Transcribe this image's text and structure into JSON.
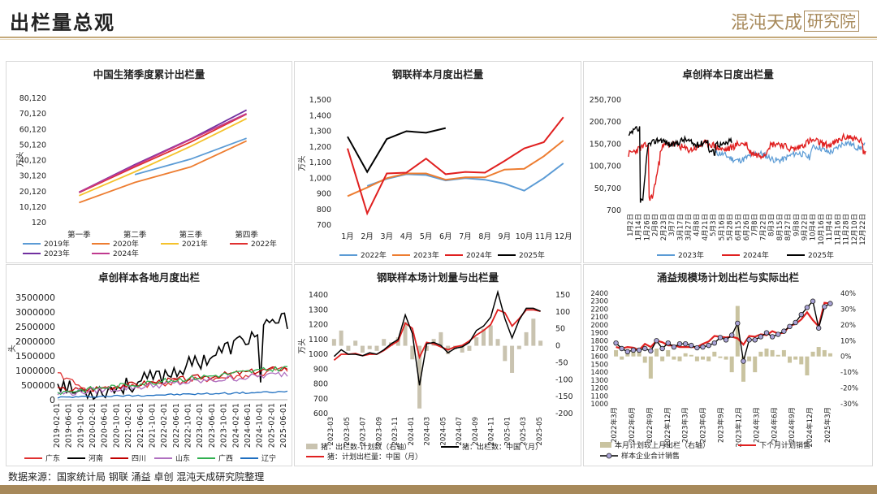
{
  "header": {
    "title": "出栏量总观",
    "logo_text": "混沌天成",
    "logo_box": "研究院"
  },
  "source": "数据来源：国家统计局 钢联 涌益 卓创 混沌天成研究院整理",
  "chart_data": [
    {
      "id": "c1",
      "type": "line",
      "title": "中国生猪季度累计出栏量",
      "ylabel": "万头",
      "categories": [
        "第一季",
        "第二季",
        "第三季",
        "第四季"
      ],
      "yticks": [
        "80,120",
        "70,120",
        "60,120",
        "50,120",
        "40,120",
        "30,120",
        "20,120",
        "10,120",
        "120"
      ],
      "ylim": [
        120,
        80120
      ],
      "series": [
        {
          "name": "2019年",
          "color": "#5b9bd5",
          "values": [
            null,
            31000,
            41000,
            54400
          ]
        },
        {
          "name": "2020年",
          "color": "#ed7d31",
          "values": [
            13000,
            26000,
            36000,
            52700
          ]
        },
        {
          "name": "2021年",
          "color": "#f5c22c",
          "values": [
            17500,
            32800,
            49200,
            67100
          ]
        },
        {
          "name": "2022年",
          "color": "#e03030",
          "values": [
            19400,
            36000,
            52000,
            69900
          ]
        },
        {
          "name": "2023年",
          "color": "#7030a0",
          "values": [
            19700,
            37500,
            54000,
            72600
          ]
        },
        {
          "name": "2024年",
          "color": "#c0398f",
          "values": [
            19800,
            36900,
            53700,
            70300
          ]
        }
      ]
    },
    {
      "id": "c2",
      "type": "line",
      "title": "钢联样本月度出栏量",
      "ylabel": "万头",
      "categories": [
        "1月",
        "2月",
        "3月",
        "4月",
        "5月",
        "6月",
        "7月",
        "8月",
        "9月",
        "10月",
        "11月",
        "12月"
      ],
      "yticks": [
        "1,500",
        "1,400",
        "1,300",
        "1,200",
        "1,100",
        "1,000",
        "900",
        "800",
        "700"
      ],
      "ylim": [
        700,
        1500
      ],
      "series": [
        {
          "name": "2022年",
          "color": "#5b9bd5",
          "values": [
            null,
            950,
            995,
            1025,
            1020,
            985,
            1000,
            990,
            965,
            920,
            1000,
            1095
          ]
        },
        {
          "name": "2023年",
          "color": "#ed7d31",
          "values": [
            885,
            940,
            1000,
            1030,
            1030,
            990,
            1005,
            1005,
            1055,
            1060,
            1140,
            1240
          ]
        },
        {
          "name": "2024年",
          "color": "#e02020",
          "values": [
            1190,
            775,
            1030,
            1035,
            1125,
            1025,
            1040,
            1035,
            1110,
            1190,
            1230,
            1390
          ]
        },
        {
          "name": "2025年",
          "color": "#000000",
          "values": [
            1265,
            1040,
            1250,
            1300,
            1290,
            1320,
            null,
            null,
            null,
            null,
            null,
            null
          ]
        }
      ]
    },
    {
      "id": "c3",
      "type": "line",
      "title": "卓创样本日度出栏量",
      "yticks": [
        "250,700",
        "200,700",
        "150,700",
        "100,700",
        "50,700",
        "700"
      ],
      "ylim": [
        700,
        250700
      ],
      "xticks": [
        "1月2日",
        "1月14日",
        "1月26日",
        "2月8日",
        "2月23日",
        "3月7日",
        "3月17日",
        "3月27日",
        "4月8日",
        "4月21日",
        "5月3日",
        "5月16日",
        "5月28日",
        "6月15日",
        "6月26日",
        "7月8日",
        "7月22日",
        "8月3日",
        "8月15日",
        "8月27日",
        "9月8日",
        "9月22日",
        "10月4日",
        "10月16日",
        "11月4日",
        "11月16日",
        "11月28日",
        "12月10日",
        "12月22日"
      ],
      "series": [
        {
          "name": "2023年",
          "color": "#5b9bd5"
        },
        {
          "name": "2024年",
          "color": "#e02020"
        },
        {
          "name": "2025年",
          "color": "#000000"
        }
      ]
    },
    {
      "id": "c4",
      "type": "line",
      "title": "卓创样本各地月度出栏",
      "ylabel": "头",
      "yticks": [
        "3500000",
        "3000000",
        "2500000",
        "2000000",
        "1500000",
        "1000000",
        "500000",
        "0"
      ],
      "ylim": [
        0,
        3500000
      ],
      "xticks": [
        "2019-02-01",
        "2019-06-01",
        "2019-10-01",
        "2020-02-01",
        "2020-06-01",
        "2020-10-01",
        "2021-02-01",
        "2021-06-01",
        "2021-10-01",
        "2022-02-01",
        "2022-06-01",
        "2022-10-01",
        "2023-02-01",
        "2023-06-01",
        "2023-10-01",
        "2024-02-01",
        "2024-06-01",
        "2024-10-01",
        "2025-02-01",
        "2025-06-01"
      ],
      "series": [
        {
          "name": "广东",
          "color": "#e03030"
        },
        {
          "name": "河南",
          "color": "#000000"
        },
        {
          "name": "四川",
          "color": "#c00000"
        },
        {
          "name": "山东",
          "color": "#b070c0"
        },
        {
          "name": "广西",
          "color": "#30b050"
        },
        {
          "name": "辽宁",
          "color": "#1f6fc0"
        }
      ]
    },
    {
      "id": "c5",
      "type": "bar+line",
      "title": "钢联样本场计划量与出栏量",
      "ylabel": "万头",
      "yticks_left": [
        "1400",
        "1300",
        "1200",
        "1100",
        "1000",
        "900",
        "800",
        "700",
        "600"
      ],
      "ylim_left": [
        600,
        1400
      ],
      "yticks_right": [
        "150",
        "100",
        "50",
        "0",
        "-50",
        "-100",
        "-150",
        "-200"
      ],
      "ylim_right": [
        -200,
        150
      ],
      "xticks": [
        "2023-03",
        "2023-05",
        "2023-07",
        "2023-09",
        "2023-11",
        "2024-01",
        "2024-03",
        "2024-05",
        "2024-07",
        "2024-09",
        "2024-11",
        "2025-01",
        "2025-03",
        "2025-05"
      ],
      "bar": [
        20,
        45,
        -15,
        15,
        -20,
        -10,
        -15,
        20,
        10,
        25,
        70,
        -40,
        -185,
        -15,
        20,
        40,
        -25,
        -10,
        -20,
        -15,
        25,
        50,
        60,
        20,
        -45,
        -80,
        -10,
        40,
        80,
        15
      ],
      "plan": [
        960,
        1000,
        1000,
        1005,
        990,
        1000,
        1000,
        1025,
        1060,
        1090,
        1210,
        1175,
        980,
        1080,
        1070,
        1050,
        1030,
        1050,
        1060,
        1090,
        1130,
        1160,
        1200,
        1300,
        1280,
        1190,
        1240,
        1300,
        1300,
        1290
      ],
      "actual": [
        985,
        1030,
        1000,
        1000,
        990,
        1010,
        1000,
        1030,
        1070,
        1100,
        1265,
        1140,
        790,
        1070,
        1080,
        1060,
        1010,
        1040,
        1050,
        1080,
        1160,
        1190,
        1250,
        1420,
        1240,
        1110,
        1230,
        1310,
        1310,
        1290
      ],
      "series": [
        {
          "name": "猪：出栏数-计划数（右轴）",
          "color": "#c9c3b0"
        },
        {
          "name": "猪：出栏数：中国（月）",
          "color": "#000000"
        },
        {
          "name": "猪：计划出栏量：中国（月）",
          "color": "#e02020"
        }
      ]
    },
    {
      "id": "c6",
      "type": "bar+line",
      "title": "涌益规模场计划出栏与实际出栏",
      "yticks_left": [
        "2400",
        "2300",
        "2200",
        "2100",
        "2000",
        "1900",
        "1800",
        "1700",
        "1600",
        "1500",
        "1400",
        "1300",
        "1200",
        "1100",
        "1000"
      ],
      "ylim_left": [
        1000,
        2400
      ],
      "yticks_right": [
        "40%",
        "30%",
        "20%",
        "10%",
        "0%",
        "-10%",
        "-20%",
        "-30%"
      ],
      "ylim_right": [
        -30,
        40
      ],
      "xticks": [
        "2022年3月",
        "2022年6月",
        "2022年9月",
        "2022年12月",
        "2023年3月",
        "2023年6月",
        "2023年9月",
        "2023年12月",
        "2024年3月",
        "2024年6月",
        "2024年9月",
        "2024年12月",
        "2025年3月"
      ],
      "bar": [
        4,
        -2,
        3,
        6,
        3,
        -4,
        -14,
        5,
        -3,
        4,
        -2,
        -3,
        2,
        1,
        -3,
        -2,
        -3,
        3,
        -1,
        -2,
        -10,
        32,
        -16,
        -3,
        -10,
        3,
        5,
        4,
        1,
        4,
        -4,
        -2,
        -5,
        -12,
        3,
        6,
        4,
        2
      ],
      "plan": [
        1720,
        1700,
        1720,
        1710,
        1680,
        1760,
        1720,
        1800,
        1780,
        1740,
        1740,
        1720,
        1720,
        1720,
        1720,
        1760,
        1790,
        1860,
        1850,
        1840,
        1850,
        1830,
        1750,
        1860,
        1850,
        1880,
        1870,
        1920,
        1890,
        1900,
        1990,
        2010,
        2070,
        2160,
        2060,
        1980,
        2280,
        2270
      ],
      "actual": [
        1770,
        1700,
        1660,
        1680,
        1680,
        1700,
        1670,
        1800,
        1700,
        1770,
        1720,
        1760,
        1760,
        1740,
        1710,
        1720,
        1740,
        1770,
        1840,
        1810,
        1870,
        2020,
        1540,
        1810,
        1810,
        1850,
        1900,
        1850,
        1880,
        1920,
        1980,
        2030,
        2130,
        2220,
        2300,
        1960,
        2230,
        2270
      ],
      "series": [
        {
          "name": "本月计划较上月出栏（右轴）",
          "color": "#c9c3a0"
        },
        {
          "name": "下个月计划销售",
          "color": "#e02020"
        },
        {
          "name": "样本企业合计销售",
          "color": "#000000"
        }
      ]
    }
  ]
}
